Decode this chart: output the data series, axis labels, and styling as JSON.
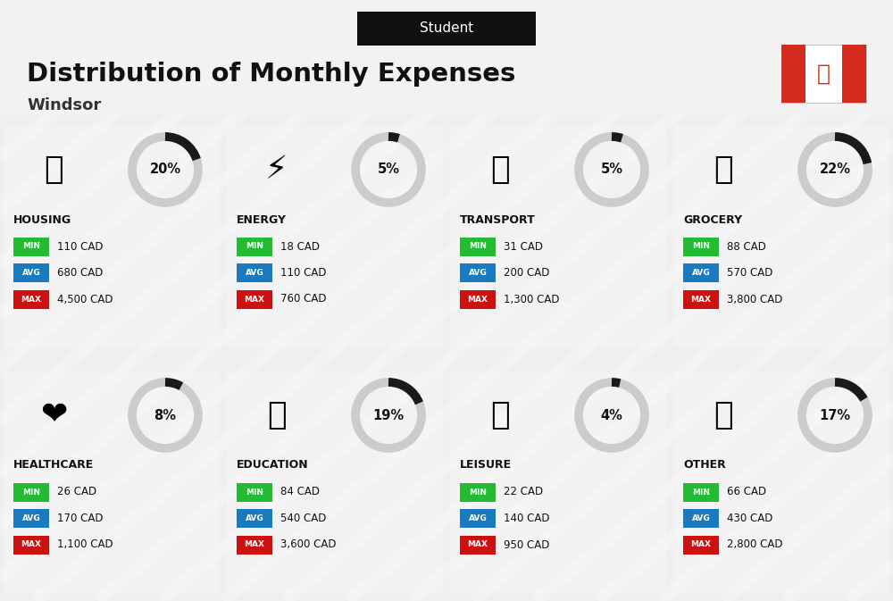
{
  "title": "Distribution of Monthly Expenses",
  "subtitle": "Student",
  "location": "Windsor",
  "bg_color": "#efefef",
  "categories": [
    {
      "name": "HOUSING",
      "percent": 20,
      "min": "110 CAD",
      "avg": "680 CAD",
      "max": "4,500 CAD",
      "row": 0,
      "col": 0
    },
    {
      "name": "ENERGY",
      "percent": 5,
      "min": "18 CAD",
      "avg": "110 CAD",
      "max": "760 CAD",
      "row": 0,
      "col": 1
    },
    {
      "name": "TRANSPORT",
      "percent": 5,
      "min": "31 CAD",
      "avg": "200 CAD",
      "max": "1,300 CAD",
      "row": 0,
      "col": 2
    },
    {
      "name": "GROCERY",
      "percent": 22,
      "min": "88 CAD",
      "avg": "570 CAD",
      "max": "3,800 CAD",
      "row": 0,
      "col": 3
    },
    {
      "name": "HEALTHCARE",
      "percent": 8,
      "min": "26 CAD",
      "avg": "170 CAD",
      "max": "1,100 CAD",
      "row": 1,
      "col": 0
    },
    {
      "name": "EDUCATION",
      "percent": 19,
      "min": "84 CAD",
      "avg": "540 CAD",
      "max": "3,600 CAD",
      "row": 1,
      "col": 1
    },
    {
      "name": "LEISURE",
      "percent": 4,
      "min": "22 CAD",
      "avg": "140 CAD",
      "max": "950 CAD",
      "row": 1,
      "col": 2
    },
    {
      "name": "OTHER",
      "percent": 17,
      "min": "66 CAD",
      "avg": "430 CAD",
      "max": "2,800 CAD",
      "row": 1,
      "col": 3
    }
  ],
  "min_color": "#22bb33",
  "avg_color": "#1a7abf",
  "max_color": "#cc1111",
  "circle_filled": "#1a1a1a",
  "circle_empty": "#cccccc",
  "header_bg": "#f5f5f5",
  "student_box_color": "#111111",
  "flag_red": "#d52b1e"
}
